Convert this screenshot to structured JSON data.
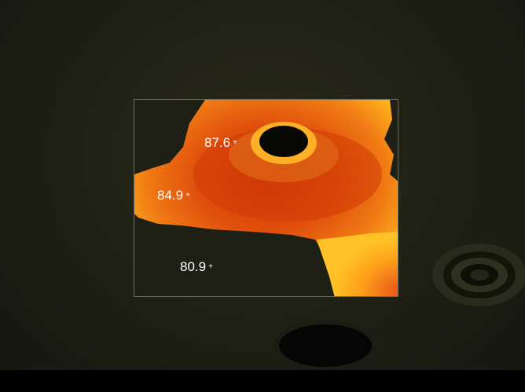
{
  "thermal_overlay": {
    "spots": [
      {
        "value": "87.6",
        "marker": "+"
      },
      {
        "value": "84.9",
        "marker": "+"
      },
      {
        "value": "80.9",
        "marker": "+"
      }
    ]
  },
  "colors": {
    "background": "#1e2015",
    "hot": "#ffb81c",
    "warm": "#e85a10",
    "cool": "#c03008"
  }
}
